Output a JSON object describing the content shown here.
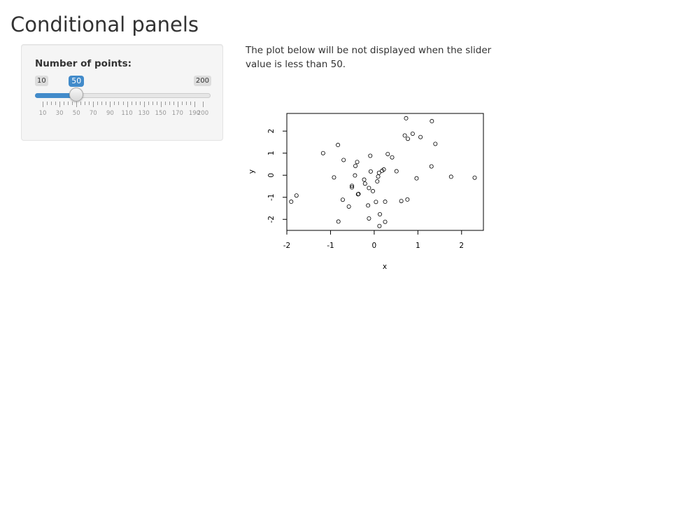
{
  "page": {
    "title": "Conditional panels"
  },
  "sidebar": {
    "slider": {
      "label": "Number of points:",
      "min": 10,
      "max": 200,
      "value": 50,
      "min_label": "10",
      "max_label": "200",
      "value_label": "50",
      "tick_labels": [
        "10",
        "30",
        "50",
        "70",
        "90",
        "110",
        "130",
        "150",
        "170",
        "190",
        "200"
      ],
      "accent_color": "#428bca"
    }
  },
  "main": {
    "description": "The plot below will be not displayed when the slider value is less than 50."
  },
  "chart_data": {
    "type": "scatter",
    "xlabel": "x",
    "ylabel": "y",
    "xlim": [
      -2.0,
      2.5
    ],
    "ylim": [
      -2.5,
      2.8
    ],
    "x_ticks": [
      -2,
      -1,
      0,
      1,
      2
    ],
    "y_ticks": [
      -2,
      -1,
      0,
      1,
      2
    ],
    "x_tick_labels": [
      "-2",
      "-1",
      "0",
      "1",
      "2"
    ],
    "y_tick_labels": [
      "-2",
      "-1",
      "0",
      "1",
      "2"
    ],
    "grid": false,
    "points": [
      {
        "x": 0.73,
        "y": 2.58
      },
      {
        "x": 1.32,
        "y": 2.45
      },
      {
        "x": 0.88,
        "y": 1.88
      },
      {
        "x": 0.7,
        "y": 1.8
      },
      {
        "x": 0.77,
        "y": 1.65
      },
      {
        "x": 1.06,
        "y": 1.73
      },
      {
        "x": 1.4,
        "y": 1.42
      },
      {
        "x": -0.83,
        "y": 1.37
      },
      {
        "x": -1.17,
        "y": 1.0
      },
      {
        "x": 0.31,
        "y": 0.96
      },
      {
        "x": -0.09,
        "y": 0.88
      },
      {
        "x": 0.41,
        "y": 0.81
      },
      {
        "x": -0.7,
        "y": 0.69
      },
      {
        "x": -0.39,
        "y": 0.6
      },
      {
        "x": -0.43,
        "y": 0.42
      },
      {
        "x": 1.31,
        "y": 0.4
      },
      {
        "x": -0.08,
        "y": 0.17
      },
      {
        "x": 0.22,
        "y": 0.26
      },
      {
        "x": 0.18,
        "y": 0.2
      },
      {
        "x": 0.51,
        "y": 0.18
      },
      {
        "x": 0.11,
        "y": 0.11
      },
      {
        "x": -0.44,
        "y": -0.01
      },
      {
        "x": 0.09,
        "y": -0.06
      },
      {
        "x": 1.76,
        "y": -0.07
      },
      {
        "x": 2.3,
        "y": -0.11
      },
      {
        "x": -0.92,
        "y": -0.1
      },
      {
        "x": 0.97,
        "y": -0.14
      },
      {
        "x": -0.23,
        "y": -0.2
      },
      {
        "x": 0.07,
        "y": -0.28
      },
      {
        "x": -0.21,
        "y": -0.38
      },
      {
        "x": -0.51,
        "y": -0.48
      },
      {
        "x": -0.51,
        "y": -0.55
      },
      {
        "x": -0.12,
        "y": -0.58
      },
      {
        "x": -0.03,
        "y": -0.72
      },
      {
        "x": -0.36,
        "y": -0.85
      },
      {
        "x": -0.37,
        "y": -0.86
      },
      {
        "x": -1.78,
        "y": -0.92
      },
      {
        "x": -0.72,
        "y": -1.11
      },
      {
        "x": 0.76,
        "y": -1.1
      },
      {
        "x": 0.62,
        "y": -1.17
      },
      {
        "x": 0.25,
        "y": -1.2
      },
      {
        "x": 0.04,
        "y": -1.21
      },
      {
        "x": -1.9,
        "y": -1.2
      },
      {
        "x": -0.14,
        "y": -1.37
      },
      {
        "x": -0.58,
        "y": -1.42
      },
      {
        "x": 0.13,
        "y": -1.77
      },
      {
        "x": -0.12,
        "y": -1.96
      },
      {
        "x": -0.82,
        "y": -2.1
      },
      {
        "x": 0.25,
        "y": -2.11
      },
      {
        "x": 0.12,
        "y": -2.3
      }
    ]
  }
}
